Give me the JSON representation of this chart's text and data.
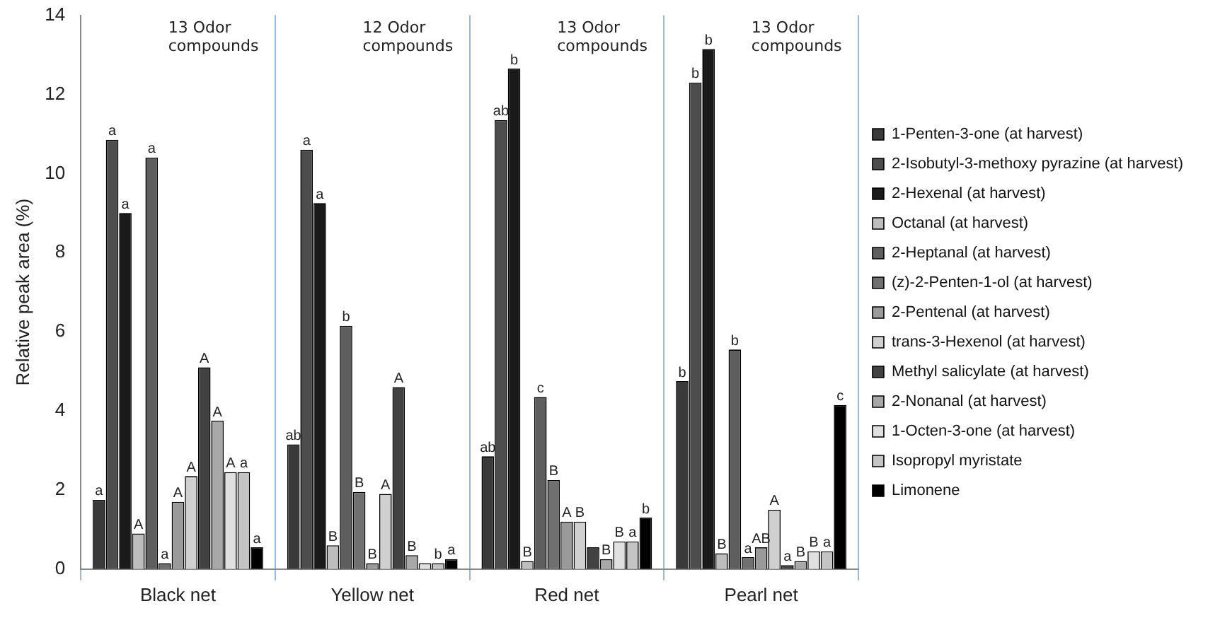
{
  "chart_data": {
    "type": "bar",
    "ylabel": "Relative peak area (%)",
    "categories": [
      "Black net",
      "Yellow net",
      "Red net",
      "Pearl net"
    ],
    "ylim": [
      0,
      14
    ],
    "yticks": [
      0,
      2,
      4,
      6,
      8,
      10,
      12,
      14
    ],
    "grid": "x",
    "legend": "right",
    "annotations": [
      "13 Odor compounds",
      "12 Odor compounds",
      "13 Odor compounds",
      "13 Odor compounds"
    ],
    "series": [
      {
        "name": "1-Penten-3-one (at harvest)",
        "color": "#3a3a3a",
        "values": [
          1.75,
          3.15,
          2.85,
          4.75
        ],
        "value_labels": [
          "a",
          "ab",
          "ab",
          "b"
        ]
      },
      {
        "name": "2-Isobutyl-3-methoxy pyrazine (at harvest)",
        "color": "#4d4d4d",
        "values": [
          10.85,
          10.6,
          11.35,
          12.3
        ],
        "value_labels": [
          "a",
          "a",
          "ab",
          "b"
        ]
      },
      {
        "name": "2-Hexenal (at harvest)",
        "color": "#1a1a1a",
        "values": [
          9.0,
          9.25,
          12.65,
          13.15
        ],
        "value_labels": [
          "a",
          "a",
          "b",
          "b"
        ]
      },
      {
        "name": "Octanal (at harvest)",
        "color": "#bdbdbd",
        "values": [
          0.9,
          0.6,
          0.2,
          0.4
        ],
        "value_labels": [
          "A",
          "B",
          "B",
          "B"
        ]
      },
      {
        "name": "2-Heptanal (at harvest)",
        "color": "#5e5e5e",
        "values": [
          10.4,
          6.15,
          4.35,
          5.55
        ],
        "value_labels": [
          "a",
          "b",
          "c",
          "b"
        ]
      },
      {
        "name": "(z)-2-Penten-1-ol (at harvest)",
        "color": "#707070",
        "values": [
          0.15,
          1.95,
          2.25,
          0.3
        ],
        "value_labels": [
          "a",
          "B",
          "B",
          "a"
        ]
      },
      {
        "name": "2-Pentenal (at harvest)",
        "color": "#9a9a9a",
        "values": [
          1.7,
          0.15,
          1.2,
          0.55
        ],
        "value_labels": [
          "A",
          "B",
          "A",
          "AB"
        ]
      },
      {
        "name": "trans-3-Hexenol (at harvest)",
        "color": "#d0d0d0",
        "values": [
          2.35,
          1.9,
          1.2,
          1.5
        ],
        "value_labels": [
          "A",
          "A",
          "B",
          "A"
        ]
      },
      {
        "name": "Methyl salicylate (at harvest)",
        "color": "#424242",
        "values": [
          5.1,
          4.6,
          0.55,
          0.1
        ],
        "value_labels": [
          "A",
          "A",
          null,
          "a"
        ]
      },
      {
        "name": "2-Nonanal (at harvest)",
        "color": "#a8a8a8",
        "values": [
          3.75,
          0.35,
          0.25,
          0.2
        ],
        "value_labels": [
          "A",
          "B",
          "B",
          "B"
        ]
      },
      {
        "name": "1-Octen-3-one (at harvest)",
        "color": "#e0e0e0",
        "values": [
          2.45,
          0.15,
          0.7,
          0.45
        ],
        "value_labels": [
          "A",
          null,
          "B",
          "B"
        ]
      },
      {
        "name": "Isopropyl myristate",
        "color": "#c4c4c4",
        "values": [
          2.45,
          0.15,
          0.7,
          0.45
        ],
        "value_labels": [
          "a",
          "b",
          "a",
          "a"
        ]
      },
      {
        "name": "Limonene",
        "color": "#000000",
        "values": [
          0.55,
          0.25,
          1.3,
          4.15
        ],
        "value_labels": [
          "a",
          "a",
          "b",
          "c"
        ]
      }
    ]
  }
}
